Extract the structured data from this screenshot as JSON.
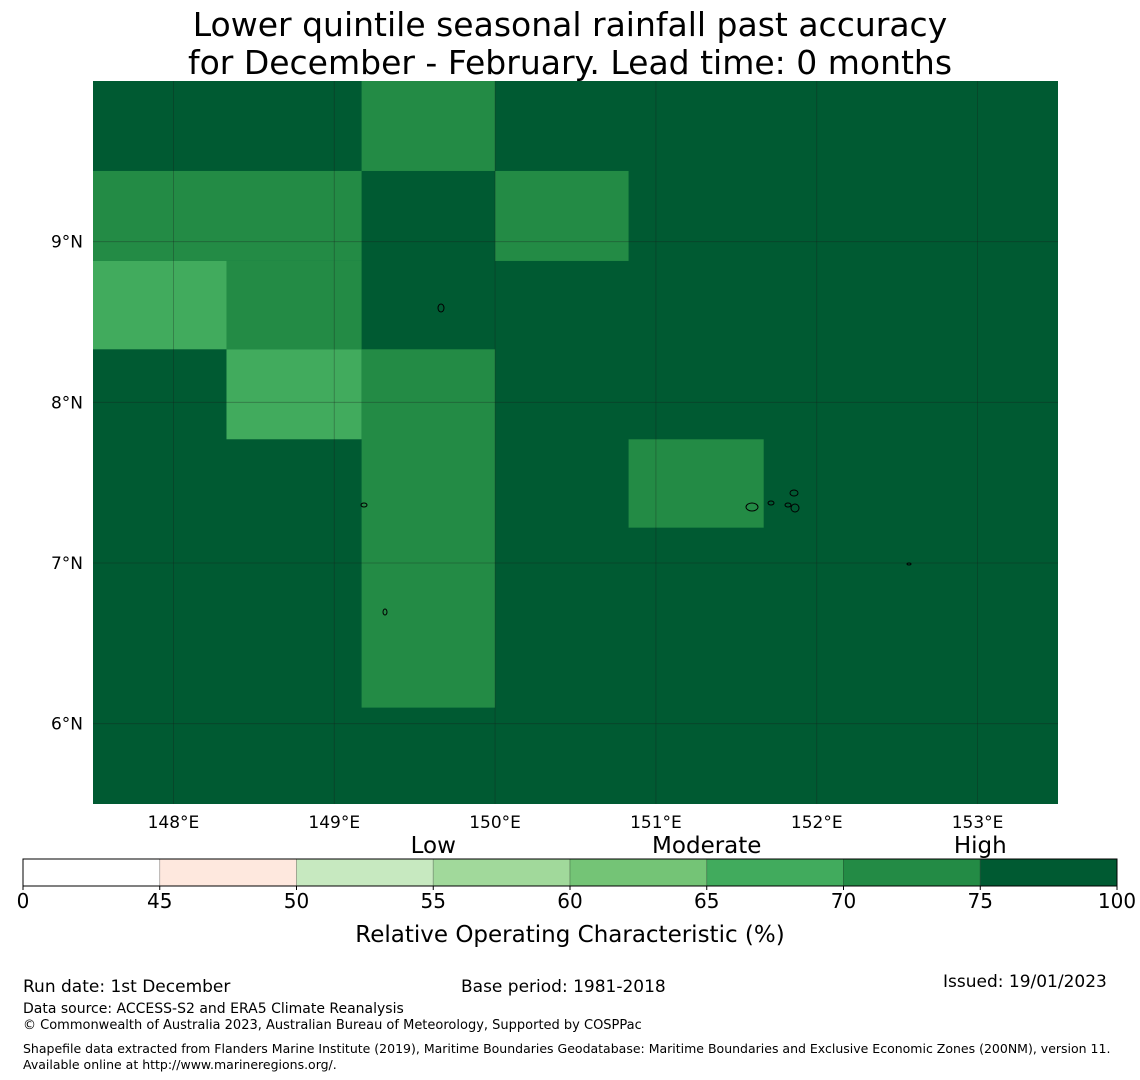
{
  "title": {
    "line1": "Lower quintile seasonal rainfall past accuracy",
    "line2": "for December - February. Lead time: 0 months"
  },
  "map": {
    "lon_range": [
      147.5,
      153.5
    ],
    "lat_range": [
      5.5,
      10.0
    ],
    "x_ticks": [
      {
        "value": 148,
        "label": "148°E"
      },
      {
        "value": 149,
        "label": "149°E"
      },
      {
        "value": 150,
        "label": "150°E"
      },
      {
        "value": 151,
        "label": "151°E"
      },
      {
        "value": 152,
        "label": "152°E"
      },
      {
        "value": 153,
        "label": "153°E"
      }
    ],
    "y_ticks": [
      {
        "value": 9,
        "label": "9°N"
      },
      {
        "value": 8,
        "label": "8°N"
      },
      {
        "value": 7,
        "label": "7°N"
      },
      {
        "value": 6,
        "label": "6°N"
      }
    ],
    "grid": true,
    "background_class_color": "#005a32",
    "cells": [
      {
        "lon": [
          149.17,
          150.0
        ],
        "lat": [
          9.44,
          10.0
        ],
        "color": "#238b45"
      },
      {
        "lon": [
          147.5,
          149.17
        ],
        "lat": [
          8.88,
          9.44
        ],
        "color": "#238b45"
      },
      {
        "lon": [
          150.0,
          150.83
        ],
        "lat": [
          8.88,
          9.44
        ],
        "color": "#238b45"
      },
      {
        "lon": [
          147.5,
          148.33
        ],
        "lat": [
          8.33,
          8.88
        ],
        "color": "#41ab5d"
      },
      {
        "lon": [
          148.33,
          149.17
        ],
        "lat": [
          8.33,
          8.88
        ],
        "color": "#238b45"
      },
      {
        "lon": [
          148.33,
          149.17
        ],
        "lat": [
          7.77,
          8.33
        ],
        "color": "#41ab5d"
      },
      {
        "lon": [
          149.17,
          150.0
        ],
        "lat": [
          6.1,
          8.33
        ],
        "color": "#238b45"
      },
      {
        "lon": [
          150.83,
          151.67
        ],
        "lat": [
          7.22,
          7.77
        ],
        "color": "#238b45"
      }
    ]
  },
  "colorbar": {
    "category_labels": [
      "Low",
      "Moderate",
      "High"
    ],
    "category_positions": [
      55,
      65,
      75
    ],
    "bounds": [
      0,
      45,
      50,
      55,
      60,
      65,
      70,
      75,
      100
    ],
    "tick_labels": [
      "0",
      "45",
      "50",
      "55",
      "60",
      "65",
      "70",
      "75",
      "100"
    ],
    "colors": [
      "#ffffff",
      "#fee8de",
      "#c7e9c0",
      "#a1d99b",
      "#74c476",
      "#41ab5d",
      "#238b45",
      "#005a32"
    ],
    "label": "Relative Operating Characteristic (%)"
  },
  "footer": {
    "run_date": "Run date: 1st December",
    "base_period": "Base period: 1981-2018",
    "issued": "Issued: 19/01/2023",
    "data_source": "Data source: ACCESS-S2 and ERA5 Climate Reanalysis",
    "copyright": "© Commonwealth of Australia 2023, Australian Bureau of Meteorology, Supported by COSPPac",
    "shapefile": "Shapefile data extracted from Flanders Marine Institute (2019), Maritime Boundaries Geodatabase: Maritime Boundaries and Exclusive Economic Zones (200NM), version 11. Available online at http://www.marineregions.org/."
  }
}
